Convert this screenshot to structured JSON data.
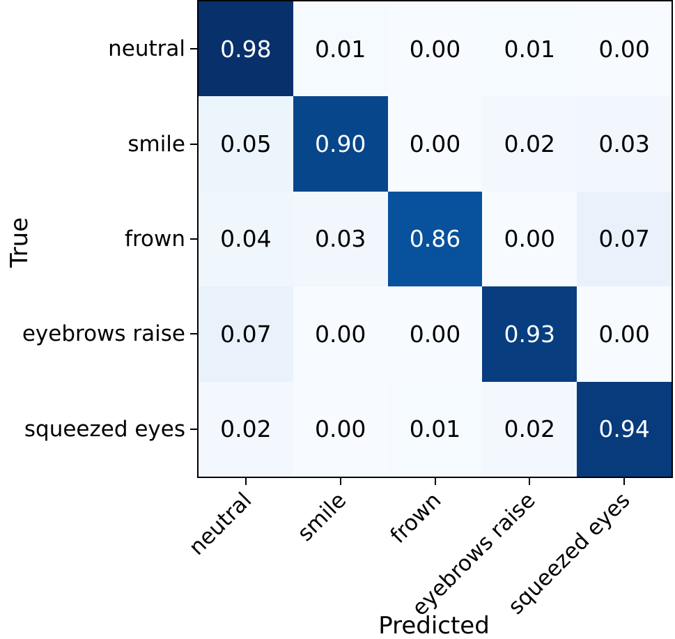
{
  "chart_data": {
    "type": "heatmap",
    "title": "",
    "xlabel": "Predicted",
    "ylabel": "True",
    "categories": [
      "neutral",
      "smile",
      "frown",
      "eyebrows raise",
      "squeezed eyes"
    ],
    "x_tick_labels": [
      "neutral",
      "smile",
      "frown",
      "eyebrows raise",
      "squeezed eyes"
    ],
    "y_tick_labels": [
      "neutral",
      "smile",
      "frown",
      "eyebrows raise",
      "squeezed eyes"
    ],
    "matrix": [
      [
        0.98,
        0.01,
        0.0,
        0.01,
        0.0
      ],
      [
        0.05,
        0.9,
        0.0,
        0.02,
        0.03
      ],
      [
        0.04,
        0.03,
        0.86,
        0.0,
        0.07
      ],
      [
        0.07,
        0.0,
        0.0,
        0.93,
        0.0
      ],
      [
        0.02,
        0.0,
        0.01,
        0.02,
        0.94
      ]
    ],
    "value_format": "two_decimals",
    "colormap": "Blues",
    "value_colors": {
      "0.00": "#f7fbff",
      "0.01": "#f5fafe",
      "0.02": "#f3f8fe",
      "0.03": "#f1f7fd",
      "0.04": "#eff6fc",
      "0.05": "#edf5fc",
      "0.07": "#e9f2fa",
      "0.86": "#08519c",
      "0.90": "#08468b",
      "0.93": "#083e7f",
      "0.94": "#083b7b",
      "0.98": "#08306b"
    },
    "dark_cell_text_color": "#ffffff",
    "light_cell_text_color": "#000000",
    "dark_text_threshold": 0.5,
    "axis_color": "#000000",
    "background_color": "#ffffff",
    "legend": "none",
    "grid": false
  }
}
